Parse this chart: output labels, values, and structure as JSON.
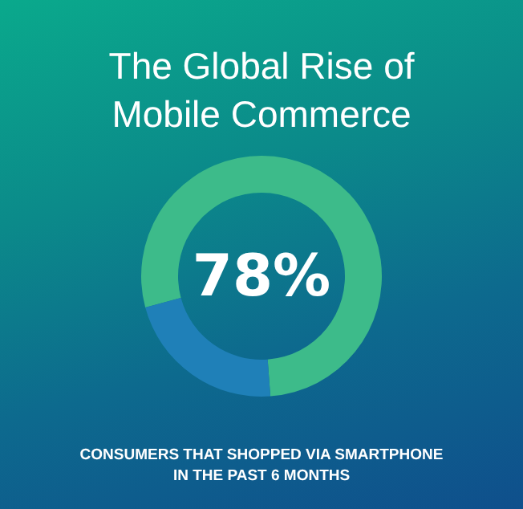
{
  "chart_data": {
    "type": "donut",
    "title": "The Global Rise of Mobile Commerce",
    "categories": [
      null,
      null
    ],
    "values": [
      78,
      22
    ],
    "colors": [
      "#3dbb8a",
      "#1f80b8"
    ],
    "value_labels": [
      "78%",
      null
    ],
    "annotations": [
      "CONSUMERS THAT SHOPPED VIA SMARTPHONE IN THE PAST 6 MONTHS"
    ]
  }
}
